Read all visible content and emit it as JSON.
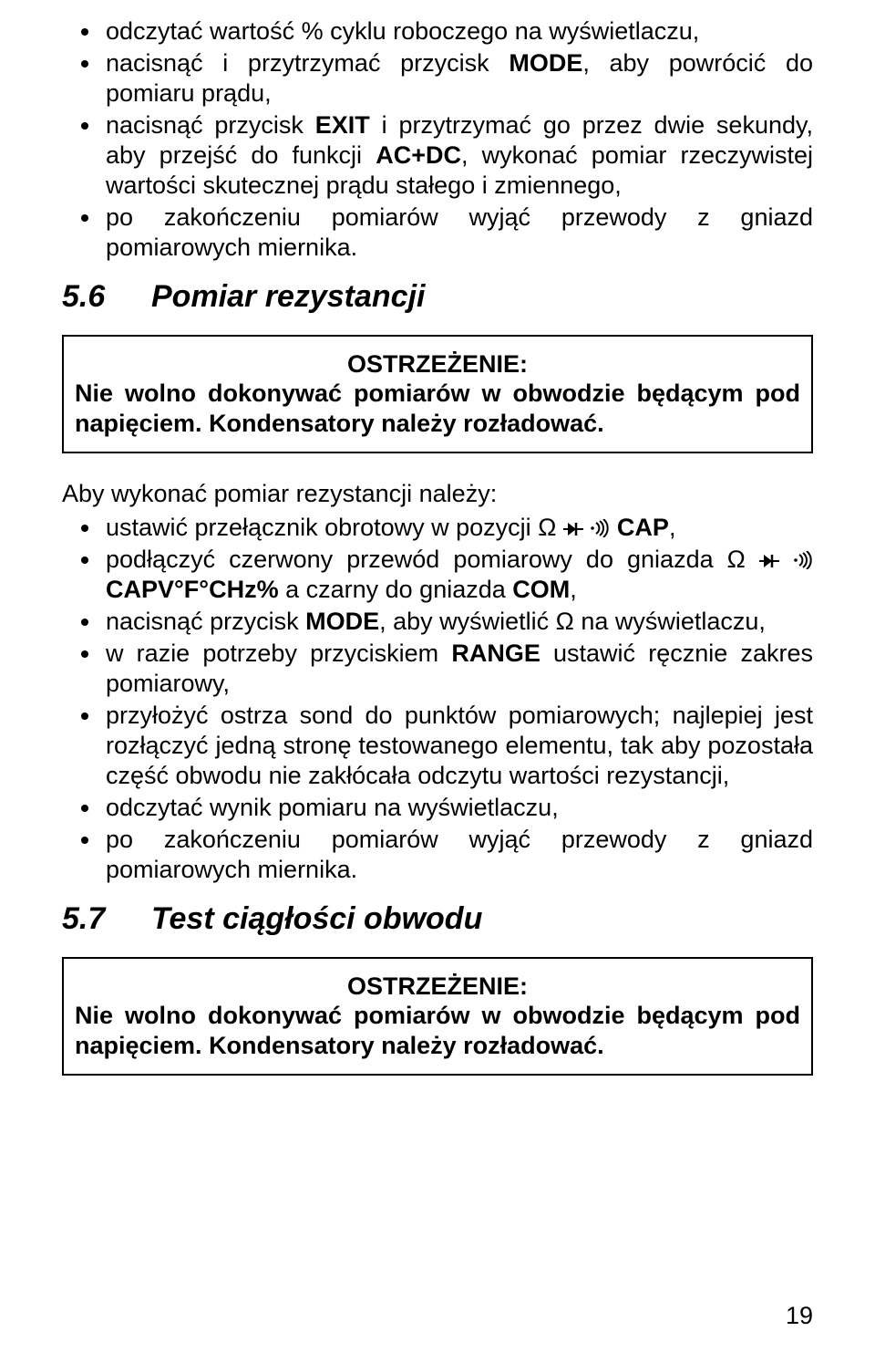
{
  "top_bullets": [
    "odczytać wartość % cyklu roboczego na wyświetlaczu,",
    "nacisnąć i przytrzymać przycisk <b>MODE</b>, aby powrócić do pomiaru prądu,",
    "nacisnąć przycisk <b>EXIT</b> i przytrzymać go przez dwie sekundy, aby przejść do funkcji <b>AC+DC</b>, wykonać pomiar rzeczywistej wartości skutecznej prądu stałego i zmiennego,",
    "po zakończeniu pomiarów wyjąć przewody z gniazd pomiarowych miernika."
  ],
  "heading56": {
    "num": "5.6",
    "title": "Pomiar rezystancji"
  },
  "warning1": {
    "label": "OSTRZEŻENIE:",
    "body": "Nie wolno dokonywać pomiarów w obwodzie będącym pod napięciem. Kondensatory należy rozładować."
  },
  "intro": "Aby wykonać pomiar rezystancji należy:",
  "mid_bullets": [
    "ustawić przełącznik obrotowy w pozycji <span class='sym'>Ω</span> {DIODE} {SOUND} <b>CAP</b>,",
    "podłączyć czerwony przewód pomiarowy do gniazda <span class='sym'>Ω</span> {DIODE} {SOUND} <b>CAPV°F°CHz%</b> a czarny do gniazda <b>COM</b>,",
    "nacisnąć przycisk <b>MODE</b>, aby wyświetlić <span class='sym'>Ω</span> na wyświetlaczu,",
    "w razie potrzeby przyciskiem <b>RANGE</b> ustawić ręcznie zakres pomiarowy,",
    "przyłożyć ostrza sond do punktów pomiarowych; najlepiej jest rozłączyć jedną stronę testowanego elementu, tak aby pozostała część obwodu nie zakłócała odczytu wartości rezystancji,",
    "odczytać wynik pomiaru na wyświetlaczu,",
    "po zakończeniu pomiarów wyjąć przewody z gniazd pomiarowych miernika."
  ],
  "heading57": {
    "num": "5.7",
    "title": "Test ciągłości obwodu"
  },
  "warning2": {
    "label": "OSTRZEŻENIE:",
    "body": "Nie wolno dokonywać pomiarów w obwodzie będącym pod napięciem. Kondensatory należy rozładować."
  },
  "page_number": "19",
  "icons": {
    "diode_svg": "<svg class='icon' width='22' height='18' viewBox='0 0 22 18'><line x1='0' y1='9' x2='5' y2='9' stroke='#000' stroke-width='2'/><polygon points='5,2 5,16 14,9' fill='#000'/><line x1='14' y1='2' x2='14' y2='16' stroke='#000' stroke-width='2.5'/><line x1='14' y1='9' x2='22' y2='9' stroke='#000' stroke-width='2'/></svg>",
    "sound_svg": "<svg class='icon' width='22' height='20' viewBox='0 0 22 20'><circle cx='3' cy='10' r='1.8' fill='#000'/><path d='M7 4 A7 7 0 0 1 7 16' fill='none' stroke='#000' stroke-width='2'/><path d='M11 2 A10 10 0 0 1 11 18' fill='none' stroke='#000' stroke-width='2'/><path d='M15 0 A13 13 0 0 1 15 20' fill='none' stroke='#000' stroke-width='2'/></svg>"
  }
}
